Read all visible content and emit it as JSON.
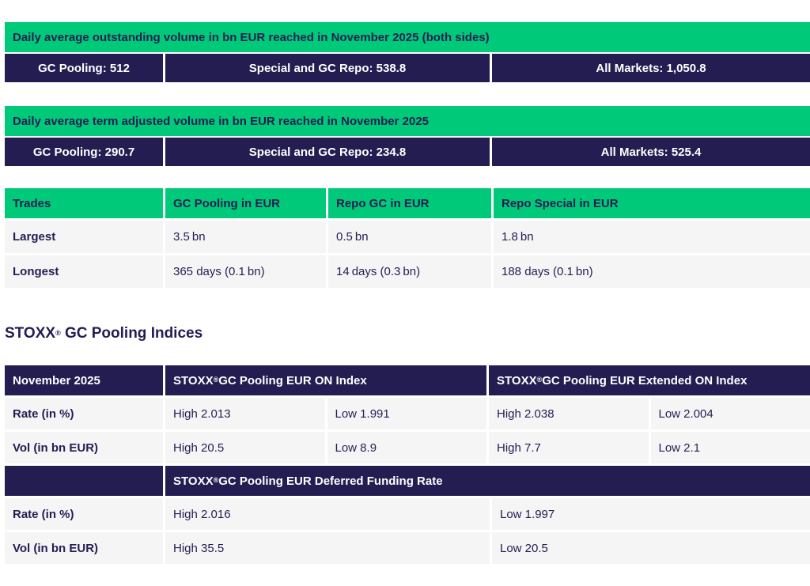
{
  "colors": {
    "accent_green": "#00c97a",
    "accent_navy": "#231d52",
    "row_background": "#f5f5f6",
    "text_on_green": "#231d52",
    "text_on_navy": "#ffffff"
  },
  "banners": [
    {
      "title": "Daily average outstanding volume in bn EUR reached in November 2025 (both sides)",
      "cells": [
        "GC Pooling: 512",
        "Special and GC Repo: 538.8",
        "All Markets: 1,050.8"
      ]
    },
    {
      "title": "Daily average term adjusted volume in bn EUR reached in November 2025",
      "cells": [
        "GC Pooling: 290.7",
        "Special and GC Repo: 234.8",
        "All Markets: 525.4"
      ]
    }
  ],
  "trades": {
    "headers": [
      "Trades",
      "GC Pooling in EUR",
      "Repo GC in EUR",
      "Repo Special in EUR"
    ],
    "rows": [
      {
        "label": "Largest",
        "values": [
          "3.5 bn",
          "0.5 bn",
          "1.8 bn"
        ]
      },
      {
        "label": "Longest",
        "values": [
          "365 days (0.1 bn)",
          "14 days (0.3 bn)",
          "188 days (0.1 bn)"
        ]
      }
    ]
  },
  "indices": {
    "heading": {
      "brand": "STOXX",
      "reg": "®",
      "rest": " GC Pooling Indices"
    },
    "table": {
      "month": "November 2025",
      "col_on": {
        "brand": "STOXX",
        "reg": "®",
        "rest": " GC Pooling EUR ON Index"
      },
      "col_ext": {
        "brand": "STOXX",
        "reg": "®",
        "rest": " GC Pooling EUR Extended ON Index"
      },
      "rows": [
        {
          "label": "Rate (in %)",
          "values": [
            "High 2.013",
            "Low 1.991",
            "High 2.038",
            "Low 2.004"
          ]
        },
        {
          "label": "Vol (in bn EUR)",
          "values": [
            "High 20.5",
            "Low 8.9",
            "High 7.7",
            "Low 2.1"
          ]
        }
      ]
    },
    "deferred": {
      "col": {
        "brand": "STOXX",
        "reg": "®",
        "rest": " GC Pooling EUR Deferred Funding Rate"
      },
      "rows": [
        {
          "label": "Rate (in %)",
          "high": "High 2.016",
          "low": "Low 1.997"
        },
        {
          "label": "Vol (in bn EUR)",
          "high": "High 35.5",
          "low": "Low 20.5"
        }
      ]
    }
  }
}
